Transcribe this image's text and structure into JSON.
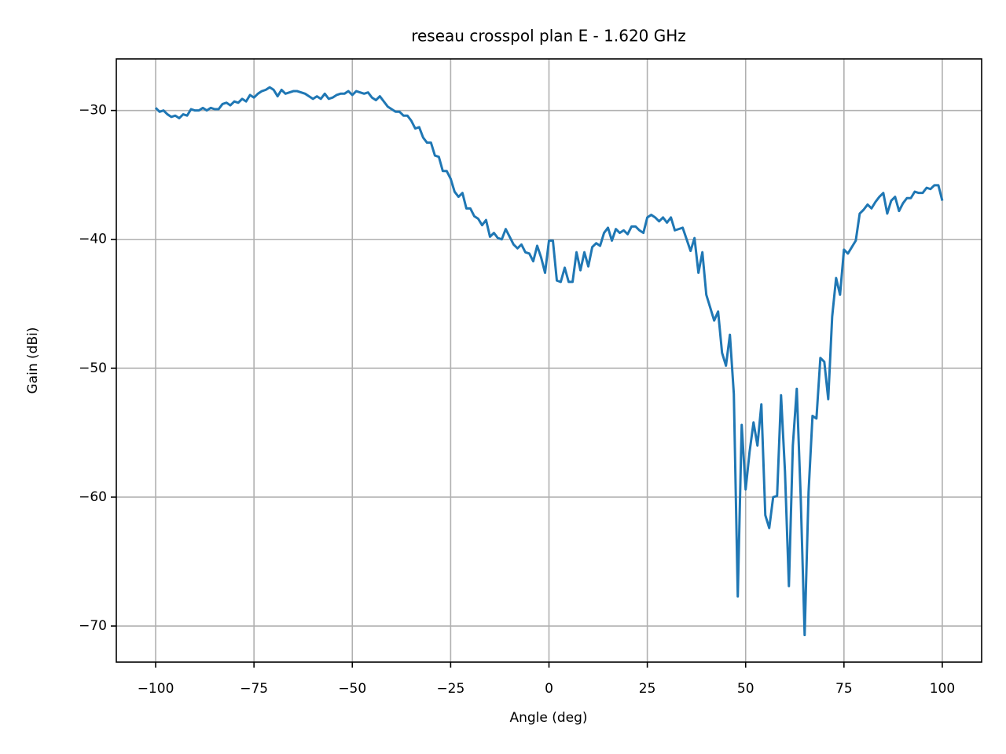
{
  "chart_data": {
    "type": "line",
    "title": "reseau crosspol plan E - 1.620 GHz",
    "xlabel": "Angle (deg)",
    "ylabel": "Gain (dBi)",
    "x": [
      -100,
      -99,
      -98,
      -97,
      -96,
      -95,
      -94,
      -93,
      -92,
      -91,
      -90,
      -89,
      -88,
      -87,
      -86,
      -85,
      -84,
      -83,
      -82,
      -81,
      -80,
      -79,
      -78,
      -77,
      -76,
      -75,
      -74,
      -73,
      -72,
      -71,
      -70,
      -69,
      -68,
      -67,
      -66,
      -65,
      -64,
      -63,
      -62,
      -61,
      -60,
      -59,
      -58,
      -57,
      -56,
      -55,
      -54,
      -53,
      -52,
      -51,
      -50,
      -49,
      -48,
      -47,
      -46,
      -45,
      -44,
      -43,
      -42,
      -41,
      -40,
      -39,
      -38,
      -37,
      -36,
      -35,
      -34,
      -33,
      -32,
      -31,
      -30,
      -29,
      -28,
      -27,
      -26,
      -25,
      -24,
      -23,
      -22,
      -21,
      -20,
      -19,
      -18,
      -17,
      -16,
      -15,
      -14,
      -13,
      -12,
      -11,
      -10,
      -9,
      -8,
      -7,
      -6,
      -5,
      -4,
      -3,
      -2,
      -1,
      0,
      1,
      2,
      3,
      4,
      5,
      6,
      7,
      8,
      9,
      10,
      11,
      12,
      13,
      14,
      15,
      16,
      17,
      18,
      19,
      20,
      21,
      22,
      23,
      24,
      25,
      26,
      27,
      28,
      29,
      30,
      31,
      32,
      33,
      34,
      35,
      36,
      37,
      38,
      39,
      40,
      41,
      42,
      43,
      44,
      45,
      46,
      47,
      48,
      49,
      50,
      51,
      52,
      53,
      54,
      55,
      56,
      57,
      58,
      59,
      60,
      61,
      62,
      63,
      64,
      65,
      66,
      67,
      68,
      69,
      70,
      71,
      72,
      73,
      74,
      75,
      76,
      77,
      78,
      79,
      80,
      81,
      82,
      83,
      84,
      85,
      86,
      87,
      88,
      89,
      90,
      91,
      92,
      93,
      94,
      95,
      96,
      97,
      98,
      99,
      100
    ],
    "series": [
      {
        "color": "#1f77b4",
        "values": [
          -29.8,
          -30.1,
          -30.0,
          -30.3,
          -30.5,
          -30.4,
          -30.6,
          -30.3,
          -30.4,
          -29.9,
          -30.0,
          -30.0,
          -29.8,
          -30.0,
          -29.8,
          -29.9,
          -29.9,
          -29.5,
          -29.4,
          -29.6,
          -29.3,
          -29.4,
          -29.1,
          -29.3,
          -28.8,
          -29.0,
          -28.7,
          -28.5,
          -28.4,
          -28.2,
          -28.4,
          -28.9,
          -28.4,
          -28.7,
          -28.6,
          -28.5,
          -28.5,
          -28.6,
          -28.7,
          -28.9,
          -29.1,
          -28.9,
          -29.1,
          -28.7,
          -29.1,
          -29.0,
          -28.8,
          -28.7,
          -28.7,
          -28.5,
          -28.8,
          -28.5,
          -28.6,
          -28.7,
          -28.6,
          -29.0,
          -29.2,
          -28.9,
          -29.3,
          -29.7,
          -29.9,
          -30.1,
          -30.1,
          -30.4,
          -30.4,
          -30.8,
          -31.4,
          -31.3,
          -32.1,
          -32.5,
          -32.5,
          -33.5,
          -33.6,
          -34.7,
          -34.7,
          -35.3,
          -36.3,
          -36.7,
          -36.4,
          -37.6,
          -37.6,
          -38.2,
          -38.4,
          -38.9,
          -38.5,
          -39.8,
          -39.5,
          -39.9,
          -40.0,
          -39.2,
          -39.8,
          -40.4,
          -40.7,
          -40.4,
          -41.0,
          -41.1,
          -41.7,
          -40.5,
          -41.4,
          -42.6,
          -40.1,
          -40.1,
          -43.2,
          -43.3,
          -42.2,
          -43.3,
          -43.3,
          -41.0,
          -42.4,
          -41.0,
          -42.1,
          -40.6,
          -40.3,
          -40.5,
          -39.5,
          -39.1,
          -40.1,
          -39.2,
          -39.5,
          -39.3,
          -39.6,
          -39.0,
          -39.0,
          -39.3,
          -39.5,
          -38.3,
          -38.1,
          -38.3,
          -38.6,
          -38.3,
          -38.7,
          -38.3,
          -39.3,
          -39.2,
          -39.1,
          -40.0,
          -40.9,
          -39.9,
          -42.6,
          -41.0,
          -44.3,
          -45.3,
          -46.3,
          -45.6,
          -48.8,
          -49.8,
          -47.4,
          -52.0,
          -67.7,
          -54.4,
          -59.4,
          -56.5,
          -54.2,
          -56.0,
          -52.8,
          -61.4,
          -62.4,
          -60.0,
          -59.9,
          -52.1,
          -58.0,
          -66.9,
          -56.0,
          -51.6,
          -60.0,
          -70.7,
          -59.6,
          -53.7,
          -53.9,
          -49.2,
          -49.5,
          -52.4,
          -46.0,
          -43.0,
          -44.3,
          -40.8,
          -41.1,
          -40.6,
          -40.1,
          -38.0,
          -37.7,
          -37.3,
          -37.6,
          -37.1,
          -36.7,
          -36.4,
          -38.0,
          -37.0,
          -36.7,
          -37.8,
          -37.2,
          -36.8,
          -36.8,
          -36.3,
          -36.4,
          -36.4,
          -36.0,
          -36.1,
          -35.8,
          -35.8,
          -37.0
        ]
      }
    ],
    "xlim": [
      -110,
      110
    ],
    "ylim": [
      -72.8,
      -26.0
    ],
    "xticks": [
      {
        "value": -100,
        "label": "−100"
      },
      {
        "value": -75,
        "label": "−75"
      },
      {
        "value": -50,
        "label": "−50"
      },
      {
        "value": -25,
        "label": "−25"
      },
      0,
      25,
      50,
      75,
      100
    ],
    "yticks": [
      {
        "value": -70,
        "label": "−70"
      },
      {
        "value": -60,
        "label": "−60"
      },
      {
        "value": -50,
        "label": "−50"
      },
      {
        "value": -40,
        "label": "−40"
      },
      {
        "value": -30,
        "label": "−30"
      }
    ],
    "grid": true
  }
}
